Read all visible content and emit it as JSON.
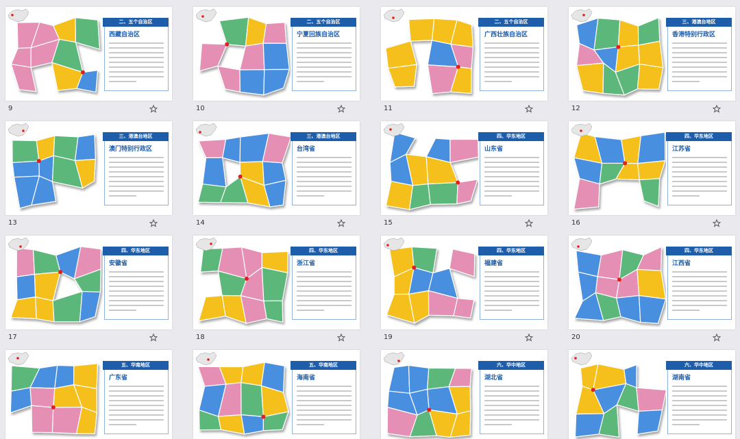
{
  "slides": [
    {
      "number": "9",
      "section": "二、五个自治区",
      "title": "西藏自治区"
    },
    {
      "number": "10",
      "section": "二、五个自治区",
      "title": "宁夏回族自治区"
    },
    {
      "number": "11",
      "section": "二、五个自治区",
      "title": "广西壮族自治区"
    },
    {
      "number": "12",
      "section": "三、港澳台地区",
      "title": "香港特别行政区"
    },
    {
      "number": "13",
      "section": "三、港澳台地区",
      "title": "澳门特别行政区"
    },
    {
      "number": "14",
      "section": "三、港澳台地区",
      "title": "台湾省"
    },
    {
      "number": "15",
      "section": "四、华东地区",
      "title": "山东省"
    },
    {
      "number": "16",
      "section": "四、华东地区",
      "title": "江苏省"
    },
    {
      "number": "17",
      "section": "四、华东地区",
      "title": "安徽省"
    },
    {
      "number": "18",
      "section": "四、华东地区",
      "title": "浙江省"
    },
    {
      "number": "19",
      "section": "四、华东地区",
      "title": "福建省"
    },
    {
      "number": "20",
      "section": "四、华东地区",
      "title": "江西省"
    },
    {
      "section": "五、华南地区",
      "title": "广东省"
    },
    {
      "section": "五、华南地区",
      "title": "海南省"
    },
    {
      "section": "六、华中地区",
      "title": "湖北省"
    },
    {
      "section": "六、华中地区",
      "title": "湖南省"
    }
  ]
}
